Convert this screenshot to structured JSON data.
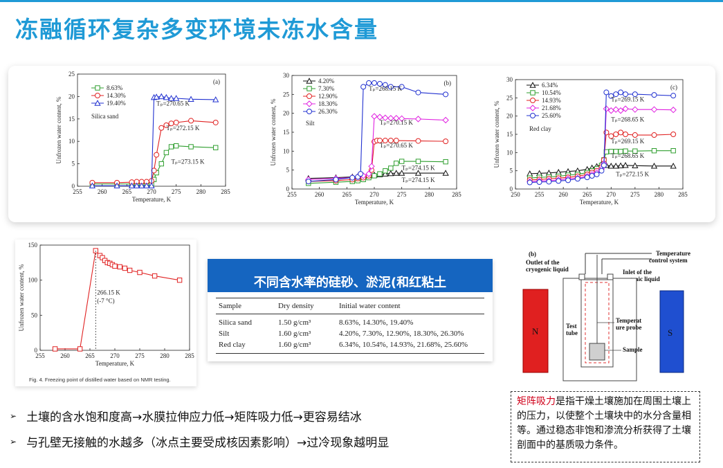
{
  "title": "冻融循环复杂多变环境未冻水含量",
  "charts": {
    "a": {
      "panel_label": "(a)",
      "sample": "Silica sand",
      "xlabel": "Temperature, K",
      "ylabel": "Unfrozen water content, %",
      "xticks": [
        "255",
        "260",
        "265",
        "270",
        "275",
        "280",
        "285"
      ],
      "yticks": [
        "0",
        "5",
        "10",
        "15",
        "20",
        "25"
      ],
      "legend": [
        "8.63%",
        "14.30%",
        "19.40%"
      ],
      "annotations": [
        "Tₚ=270.65 K",
        "Tₚ=272.15 K",
        "Tₚ=273.15 K"
      ]
    },
    "b": {
      "panel_label": "(b)",
      "sample": "Silt",
      "xlabel": "Temperature, K",
      "ylabel": "Unfrozen water content, %",
      "xticks": [
        "255",
        "260",
        "265",
        "270",
        "275",
        "280",
        "285"
      ],
      "yticks": [
        "0",
        "5",
        "10",
        "15",
        "20",
        "25",
        "30"
      ],
      "legend": [
        "4.20%",
        "7.30%",
        "12.90%",
        "18.30%",
        "26.30%"
      ],
      "annotations": [
        "Tₚ=268.15 K",
        "Tₚ=270.15 K",
        "Tₚ=270.65 K",
        "Tₚ=274.15 K",
        "Tₚ=274.15 K"
      ]
    },
    "c": {
      "panel_label": "(c)",
      "sample": "Red clay",
      "xlabel": "Temperature, K",
      "ylabel": "Unfrozen water content, %",
      "xticks": [
        "250",
        "255",
        "260",
        "265",
        "270",
        "275",
        "280",
        "285"
      ],
      "yticks": [
        "0",
        "5",
        "10",
        "15",
        "20",
        "25",
        "30"
      ],
      "legend": [
        "6.34%",
        "10.54%",
        "14.93%",
        "21.68%",
        "25.60%"
      ],
      "annotations": [
        "Tₚ=269.15 K",
        "Tₚ=268.65 K",
        "Tₚ=269.15 K",
        "Tₚ=268.65 K",
        "Tₚ=272.15 K"
      ]
    },
    "d": {
      "xlabel": "Temperature, K",
      "ylabel": "Unfrozen water content, %",
      "xticks": [
        "255",
        "260",
        "265",
        "270",
        "275",
        "280",
        "285"
      ],
      "yticks": [
        "0",
        "50",
        "100",
        "150"
      ],
      "annotation1": "266.15 K",
      "annotation2": "(-7 °C)",
      "caption": "Fig. 4.  Freezing point of distilled water based on NMR testing."
    }
  },
  "chart_data": [
    {
      "type": "line",
      "title": "(a) Silica sand",
      "xlabel": "Temperature, K",
      "ylabel": "Unfrozen water content, %",
      "xlim": [
        255,
        285
      ],
      "ylim": [
        0,
        25
      ],
      "series": [
        {
          "name": "8.63%",
          "color": "#2e9e2e",
          "marker": "square",
          "x": [
            258,
            263,
            266,
            267,
            268,
            269,
            270,
            270.5,
            271,
            272,
            273,
            274,
            275,
            278,
            283
          ],
          "y": [
            0.5,
            0.5,
            0.5,
            0.5,
            0.5,
            0.5,
            0.5,
            1.5,
            3,
            5,
            7.5,
            8.8,
            9,
            8.8,
            8.6
          ]
        },
        {
          "name": "14.30%",
          "color": "#e02020",
          "marker": "circle",
          "x": [
            258,
            263,
            266,
            267,
            268,
            269,
            270,
            270.5,
            271,
            272,
            273,
            274,
            275,
            278,
            283
          ],
          "y": [
            0.8,
            0.8,
            0.9,
            1,
            1,
            1,
            1.2,
            3.5,
            7,
            13,
            13.6,
            14,
            14.2,
            14.6,
            14.2
          ]
        },
        {
          "name": "19.40%",
          "color": "#2030d0",
          "marker": "triangle",
          "x": [
            258,
            263,
            266,
            267,
            268,
            269,
            270,
            270.5,
            271,
            272,
            273,
            274,
            275,
            278,
            283
          ],
          "y": [
            0.1,
            0.1,
            0.1,
            0.1,
            0.1,
            0.1,
            0.1,
            19.8,
            19.9,
            20,
            19.8,
            19.6,
            19.6,
            19.4,
            19.3
          ]
        }
      ]
    },
    {
      "type": "line",
      "title": "(b) Silt",
      "xlabel": "Temperature, K",
      "ylabel": "Unfrozen water content, %",
      "xlim": [
        255,
        285
      ],
      "ylim": [
        0,
        30
      ],
      "series": [
        {
          "name": "4.20%",
          "color": "#111111",
          "marker": "triangle",
          "x": [
            258,
            263,
            266,
            267,
            268,
            269,
            270,
            271,
            272,
            273,
            274,
            275,
            278,
            283
          ],
          "y": [
            2.8,
            3,
            3.2,
            3.3,
            3.4,
            3.5,
            3.7,
            3.8,
            4,
            4.1,
            4.2,
            4.2,
            4.2,
            4.2
          ]
        },
        {
          "name": "7.30%",
          "color": "#2e9e2e",
          "marker": "square",
          "x": [
            258,
            263,
            266,
            267,
            268,
            269,
            270,
            271,
            272,
            273,
            274,
            275,
            278,
            283
          ],
          "y": [
            1.5,
            1.8,
            2,
            2.2,
            2.5,
            3,
            3.5,
            4,
            4.8,
            5.5,
            6.8,
            7.3,
            7.3,
            7.2
          ]
        },
        {
          "name": "12.90%",
          "color": "#e02020",
          "marker": "circle",
          "x": [
            258,
            263,
            266,
            267,
            268,
            269,
            269.5,
            270,
            270.5,
            271,
            272,
            273,
            274,
            278,
            283
          ],
          "y": [
            2,
            2.2,
            2.5,
            2.8,
            3,
            3.5,
            5,
            12.5,
            12.8,
            12.8,
            12.8,
            12.8,
            12.8,
            12.7,
            12.6
          ]
        },
        {
          "name": "18.30%",
          "color": "#e020e0",
          "marker": "diamond",
          "x": [
            258,
            263,
            266,
            267,
            268,
            269,
            269.5,
            270,
            271,
            272,
            273,
            274,
            275,
            278,
            283
          ],
          "y": [
            2.5,
            2.8,
            3,
            3.2,
            3.5,
            4,
            6,
            19.2,
            19,
            18.8,
            18.7,
            18.7,
            18.6,
            18.5,
            18.2
          ]
        },
        {
          "name": "26.30%",
          "color": "#2030d0",
          "marker": "circle",
          "x": [
            258,
            263,
            266,
            267,
            267.5,
            268,
            269,
            270,
            271,
            272,
            273,
            275,
            278,
            283
          ],
          "y": [
            2,
            2.5,
            3,
            3.2,
            4,
            27,
            28,
            28,
            27.8,
            27.5,
            27,
            27,
            25.5,
            25
          ]
        }
      ]
    },
    {
      "type": "line",
      "title": "(c) Red clay",
      "xlabel": "Temperature, K",
      "ylabel": "Unfrozen water content, %",
      "xlim": [
        250,
        285
      ],
      "ylim": [
        0,
        30
      ],
      "series": [
        {
          "name": "6.34%",
          "color": "#111111",
          "marker": "triangle",
          "x": [
            253,
            255,
            257,
            259,
            261,
            263,
            265,
            266,
            267,
            268,
            269,
            270,
            271,
            272,
            273,
            275,
            279,
            283
          ],
          "y": [
            4.2,
            4.3,
            4.4,
            4.6,
            4.8,
            5,
            5.4,
            5.8,
            6.2,
            6.8,
            6.5,
            6.3,
            6.3,
            6.4,
            6.5,
            6.4,
            6.3,
            6.3
          ]
        },
        {
          "name": "10.54%",
          "color": "#2e9e2e",
          "marker": "square",
          "x": [
            253,
            255,
            257,
            259,
            261,
            263,
            265,
            266,
            267,
            268,
            268.5,
            269,
            270,
            271,
            272,
            273,
            275,
            279,
            283
          ],
          "y": [
            3,
            3.2,
            3.3,
            3.5,
            3.8,
            4,
            4.5,
            5,
            5.6,
            6.5,
            8,
            10.2,
            10.3,
            10.3,
            10.3,
            10.4,
            10.4,
            10.5,
            10.5
          ]
        },
        {
          "name": "14.93%",
          "color": "#e02020",
          "marker": "circle",
          "x": [
            253,
            255,
            257,
            259,
            261,
            263,
            265,
            266,
            267,
            268,
            268.5,
            269,
            270,
            271,
            272,
            273,
            275,
            279,
            283
          ],
          "y": [
            2.5,
            2.6,
            2.8,
            3,
            3.2,
            3.5,
            4,
            4.5,
            5,
            6,
            8,
            15.5,
            14.5,
            15,
            15.5,
            15,
            14.8,
            14.8,
            15
          ]
        },
        {
          "name": "21.68%",
          "color": "#e020e0",
          "marker": "diamond",
          "x": [
            253,
            255,
            257,
            259,
            261,
            263,
            265,
            266,
            267,
            268,
            268.5,
            269,
            270,
            271,
            272,
            273,
            275,
            279,
            283
          ],
          "y": [
            2,
            2.2,
            2.3,
            2.5,
            2.8,
            3,
            3.5,
            4,
            4.5,
            5.5,
            7,
            22,
            21.5,
            21.8,
            21.5,
            22,
            21.8,
            21.8,
            21.7
          ]
        },
        {
          "name": "25.60%",
          "color": "#2030d0",
          "marker": "circle",
          "x": [
            253,
            255,
            257,
            259,
            261,
            263,
            265,
            266,
            267,
            268,
            268.5,
            269,
            270,
            271,
            272,
            273,
            275,
            279,
            283
          ],
          "y": [
            1.8,
            1.9,
            2,
            2.2,
            2.4,
            2.8,
            3.2,
            3.6,
            4,
            5,
            6.5,
            26.5,
            25.5,
            26,
            26.5,
            26,
            26,
            25.8,
            25.6
          ]
        }
      ]
    },
    {
      "type": "line",
      "title": "",
      "xlabel": "Temperature, K",
      "ylabel": "Unfrozen water content, %",
      "xlim": [
        255,
        285
      ],
      "ylim": [
        0,
        150
      ],
      "series": [
        {
          "name": "",
          "color": "#e02020",
          "marker": "square",
          "x": [
            258,
            263,
            266.15,
            267,
            267.5,
            268,
            268.5,
            269,
            269.5,
            270,
            271,
            272,
            273,
            275,
            278,
            283
          ],
          "y": [
            2,
            2,
            142,
            135,
            132,
            128,
            125,
            124,
            122,
            120,
            119,
            117,
            114,
            111,
            106,
            100
          ]
        }
      ]
    }
  ],
  "table": {
    "banner": "不同含水率的硅砂、淤泥(和红粘土",
    "headers": [
      "Sample",
      "Dry density",
      "Initial water content"
    ],
    "rows": [
      [
        "Silica sand",
        "1.50 g/cm³",
        "8.63%, 14.30%, 19.40%"
      ],
      [
        "Silt",
        "1.60 g/cm³",
        "4.20%, 7.30%, 12.90%, 18.30%, 26.30%"
      ],
      [
        "Red clay",
        "1.60 g/cm³",
        "6.34%, 10.54%, 14.93%, 21.68%, 25.60%"
      ]
    ]
  },
  "apparatus": {
    "panel_label": "(b)",
    "outlet": "Outlet of the",
    "outlet2": "cryogenic liquid",
    "inlet": "Inlet of the",
    "inlet2": "cryogenic liquid",
    "tcs1": "Temperature",
    "tcs2": "control system",
    "test1": "Test",
    "test2": "tube",
    "probe1": "Temperat",
    "probe2": "ure probe",
    "sample": "Sample",
    "north": "N",
    "south": "S"
  },
  "bullets": [
    "土壤的含水饱和度高→水膜拉伸应力低→矩阵吸力低→更容易结冰",
    "与孔壁无接触的水越多（冰点主要受成核因素影响）→过冷现象越明显"
  ],
  "bullet_marker": "➢",
  "note": {
    "highlight": "矩阵吸力",
    "text": "是指干燥土壤施加在周围土壤上的压力，以使整个土壤块中的水分含量相等。通过稳态非饱和渗流分析获得了土壤剖面中的基质吸力条件。"
  }
}
